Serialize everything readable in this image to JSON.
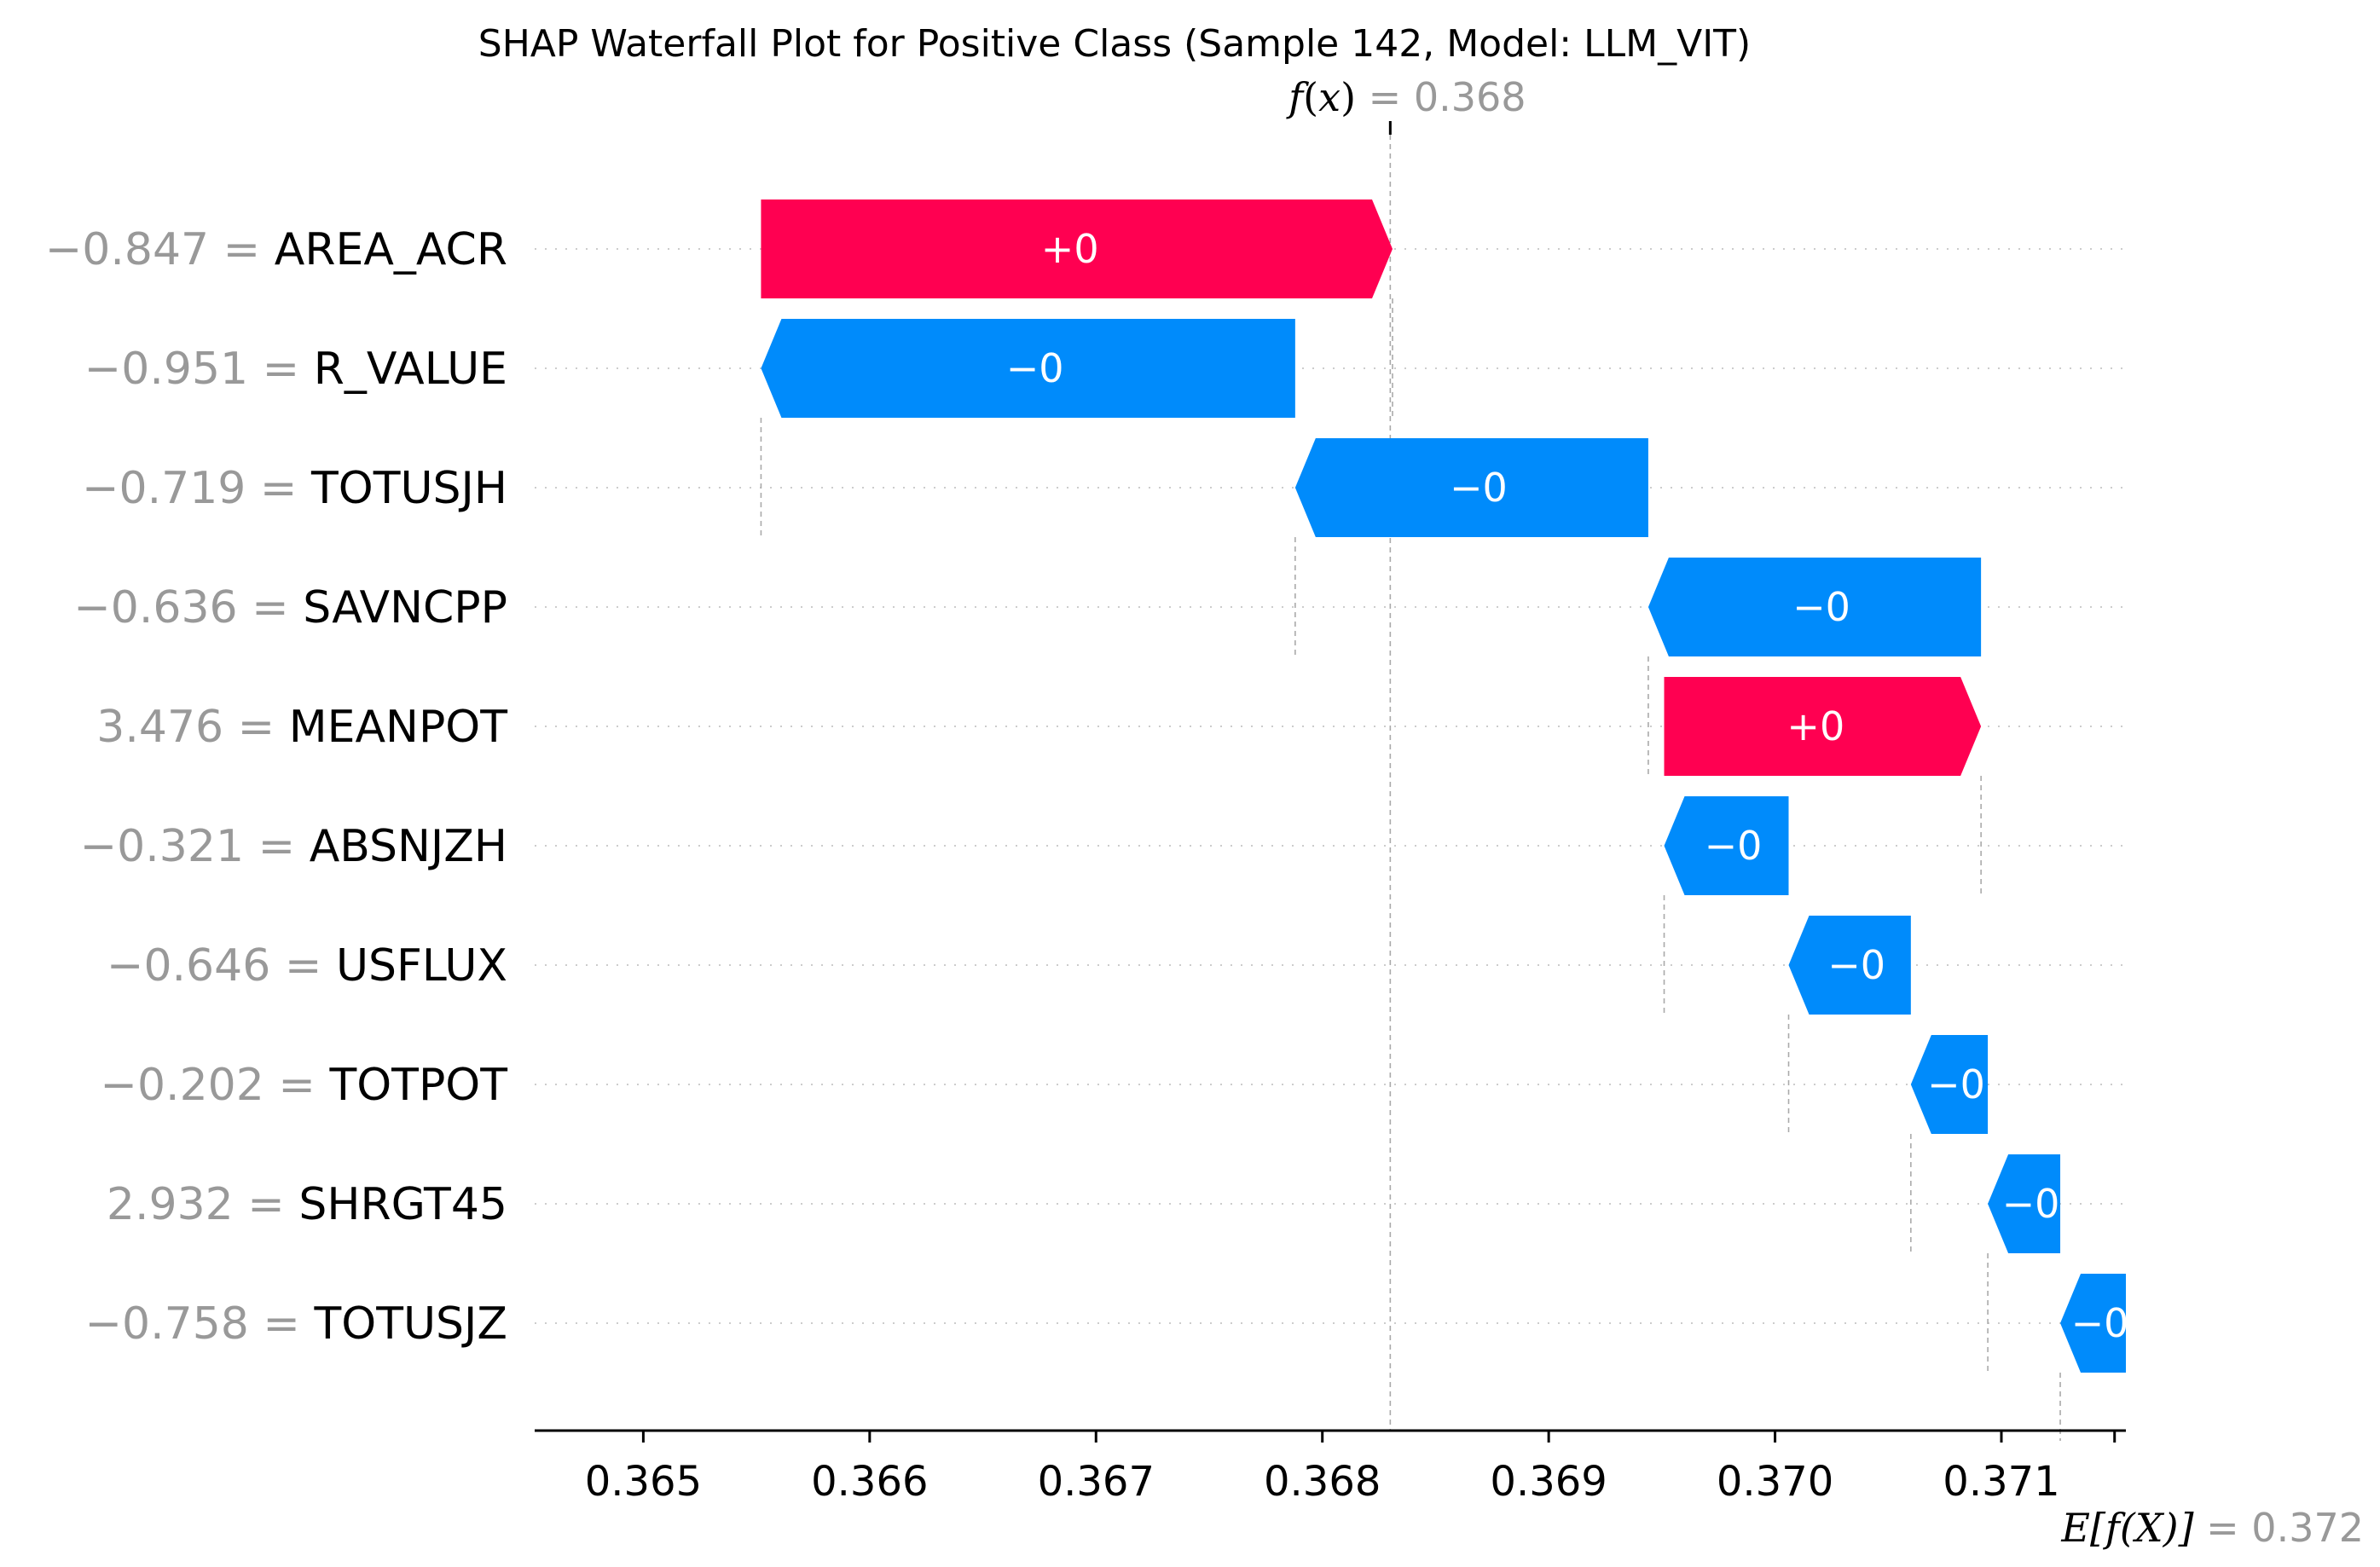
{
  "chart_data": {
    "type": "waterfall",
    "title": "SHAP Waterfall Plot for Positive Class (Sample 142, Model: LLM_VIT)",
    "fx": {
      "label_fn": "f",
      "label_arg": "x",
      "equals": " = ",
      "value": 0.3683,
      "value_label": "0.368"
    },
    "expected": {
      "label": "E[f(X)]",
      "equals": " = ",
      "value": 0.3715,
      "value_label": "0.372"
    },
    "xlim": [
      0.36452,
      0.37155
    ],
    "xticks": [
      0.365,
      0.366,
      0.367,
      0.368,
      0.369,
      0.37,
      0.371
    ],
    "xtick_labels": [
      "0.365",
      "0.366",
      "0.367",
      "0.368",
      "0.369",
      "0.370",
      "0.371"
    ],
    "colors": {
      "positive": "#ff0051",
      "negative": "#008bfb"
    },
    "features": [
      {
        "value": "−0.847",
        "name": "AREA_ACR",
        "start": 0.36552,
        "end": 0.36831,
        "label": "+0"
      },
      {
        "value": "−0.951",
        "name": "R_VALUE",
        "start": 0.36788,
        "end": 0.36552,
        "label": "−0"
      },
      {
        "value": "−0.719",
        "name": "TOTUSJH",
        "start": 0.36944,
        "end": 0.36788,
        "label": "−0"
      },
      {
        "value": "−0.636",
        "name": "SAVNCPP",
        "start": 0.37091,
        "end": 0.36944,
        "label": "−0"
      },
      {
        "value": "3.476",
        "name": "MEANPOT",
        "start": 0.36951,
        "end": 0.37091,
        "label": "+0"
      },
      {
        "value": "−0.321",
        "name": "ABSNJZH",
        "start": 0.37006,
        "end": 0.36951,
        "label": "−0"
      },
      {
        "value": "−0.646",
        "name": "USFLUX",
        "start": 0.3706,
        "end": 0.37006,
        "label": "−0"
      },
      {
        "value": "−0.202",
        "name": "TOTPOT",
        "start": 0.37094,
        "end": 0.3706,
        "label": "−0"
      },
      {
        "value": "2.932",
        "name": "SHRGT45",
        "start": 0.37126,
        "end": 0.37094,
        "label": "−0"
      },
      {
        "value": "−0.758",
        "name": "TOTUSJZ",
        "start": 0.37155,
        "end": 0.37126,
        "label": "−0"
      }
    ]
  }
}
